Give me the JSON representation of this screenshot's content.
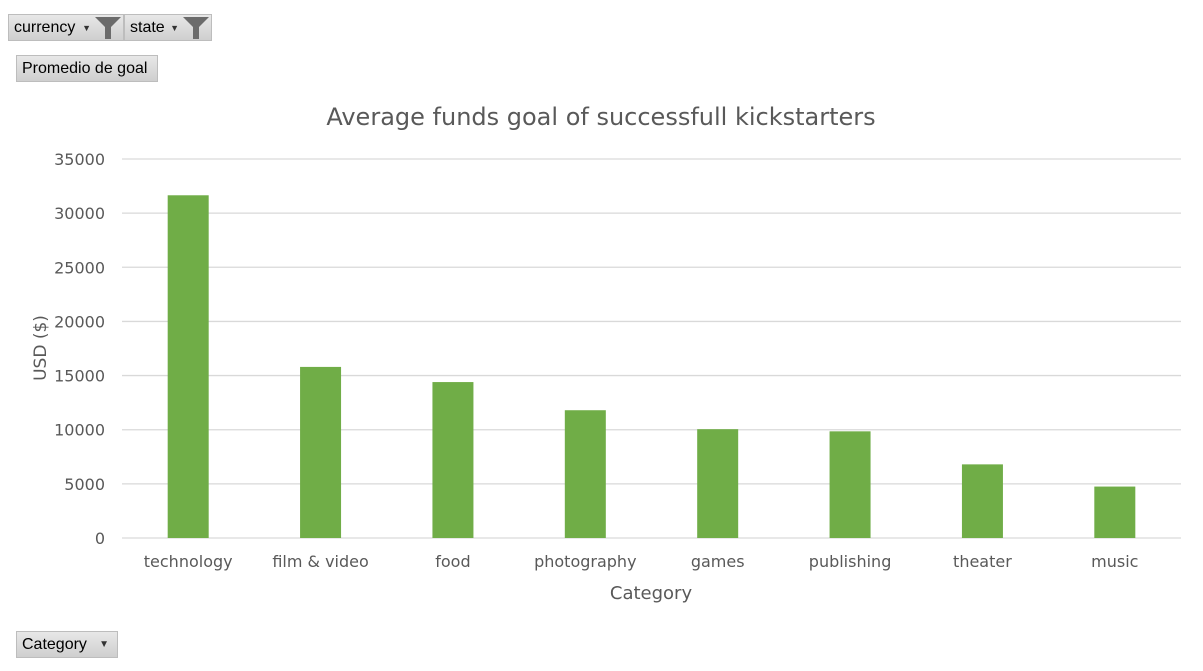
{
  "pivot": {
    "filters": [
      {
        "label": "currency",
        "icon": "filter-icon"
      },
      {
        "label": "state",
        "icon": "filter-icon"
      }
    ],
    "measure_label": "Promedio de goal",
    "axis_field_label": "Category",
    "dropdown_icon": "dropdown-arrow-icon"
  },
  "colors": {
    "bar": "#70ad47",
    "grid": "#d9d9d9",
    "text": "#595959"
  },
  "chart_data": {
    "type": "bar",
    "title": "Average funds goal of successfull kickstarters",
    "xlabel": "Category",
    "ylabel": "USD ($)",
    "categories": [
      "technology",
      "film & video",
      "food",
      "photography",
      "games",
      "publishing",
      "theater",
      "music"
    ],
    "values": [
      31650,
      15800,
      14400,
      11800,
      10050,
      9850,
      6800,
      4750
    ],
    "ylim": [
      0,
      35000
    ],
    "yticks": [
      0,
      5000,
      10000,
      15000,
      20000,
      25000,
      30000,
      35000
    ],
    "grid": true,
    "legend": "none"
  }
}
